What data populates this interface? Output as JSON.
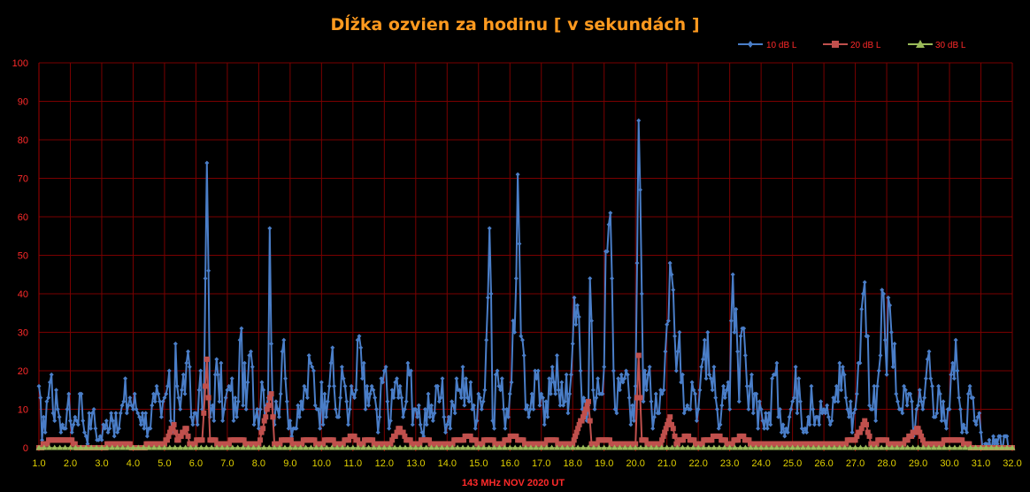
{
  "chart_data": {
    "type": "line",
    "title": "Dĺžka ozvien za hodinu [ v sekundách ]",
    "xlabel": "143 MHz  NOV  2020  UT",
    "ylabel": "",
    "xlim": [
      1.0,
      32.0
    ],
    "ylim": [
      0,
      100
    ],
    "x_ticks": [
      "1.0",
      "2.0",
      "3.0",
      "4.0",
      "5.0",
      "6.0",
      "7.0",
      "8.0",
      "9.0",
      "10.0",
      "11.0",
      "12.0",
      "13.0",
      "14.0",
      "15.0",
      "16.0",
      "17.0",
      "18.0",
      "19.0",
      "20.0",
      "21.0",
      "22.0",
      "23.0",
      "24.0",
      "25.0",
      "26.0",
      "27.0",
      "28.0",
      "29.0",
      "30.0",
      "31.0",
      "32.0"
    ],
    "y_ticks": [
      "0",
      "10",
      "20",
      "30",
      "40",
      "50",
      "60",
      "70",
      "80",
      "90",
      "100"
    ],
    "grid": true,
    "legend_position": "top-right",
    "series": [
      {
        "name": "10 dB L",
        "color": "#4a7ec8",
        "marker": "diamond",
        "keypoints": [
          [
            1.0,
            16
          ],
          [
            1.1,
            2
          ],
          [
            1.25,
            12
          ],
          [
            1.35,
            17
          ],
          [
            1.45,
            9
          ],
          [
            1.55,
            15
          ],
          [
            1.7,
            4
          ],
          [
            1.9,
            10
          ],
          [
            2.1,
            6
          ],
          [
            2.3,
            14
          ],
          [
            2.5,
            3
          ],
          [
            2.7,
            9
          ],
          [
            2.9,
            2
          ],
          [
            3.1,
            5
          ],
          [
            3.3,
            9
          ],
          [
            3.5,
            4
          ],
          [
            3.7,
            12
          ],
          [
            3.9,
            13
          ],
          [
            4.1,
            10
          ],
          [
            4.3,
            9
          ],
          [
            4.5,
            5
          ],
          [
            4.7,
            12
          ],
          [
            4.9,
            8
          ],
          [
            5.1,
            16
          ],
          [
            5.3,
            4
          ],
          [
            5.35,
            27
          ],
          [
            5.5,
            10
          ],
          [
            5.7,
            22
          ],
          [
            5.9,
            6
          ],
          [
            6.1,
            15
          ],
          [
            6.25,
            9
          ],
          [
            6.3,
            44
          ],
          [
            6.35,
            74
          ],
          [
            6.45,
            8
          ],
          [
            6.7,
            19
          ],
          [
            6.9,
            10
          ],
          [
            7.1,
            15
          ],
          [
            7.3,
            8
          ],
          [
            7.4,
            28
          ],
          [
            7.6,
            10
          ],
          [
            7.7,
            24
          ],
          [
            7.9,
            8
          ],
          [
            8.1,
            17
          ],
          [
            8.3,
            13
          ],
          [
            8.35,
            57
          ],
          [
            8.45,
            8
          ],
          [
            8.6,
            10
          ],
          [
            8.75,
            25
          ],
          [
            8.9,
            12
          ],
          [
            9.1,
            5
          ],
          [
            9.3,
            8
          ],
          [
            9.5,
            15
          ],
          [
            9.7,
            21
          ],
          [
            9.9,
            10
          ],
          [
            10.1,
            14
          ],
          [
            10.3,
            22
          ],
          [
            10.5,
            8
          ],
          [
            10.7,
            18
          ],
          [
            10.9,
            10
          ],
          [
            11.1,
            15
          ],
          [
            11.2,
            29
          ],
          [
            11.4,
            10
          ],
          [
            11.6,
            16
          ],
          [
            11.8,
            4
          ],
          [
            12.0,
            20
          ],
          [
            12.2,
            7
          ],
          [
            12.4,
            18
          ],
          [
            12.6,
            8
          ],
          [
            12.8,
            19
          ],
          [
            13.0,
            10
          ],
          [
            13.2,
            4
          ],
          [
            13.4,
            14
          ],
          [
            13.6,
            9
          ],
          [
            13.8,
            13
          ],
          [
            14.0,
            6
          ],
          [
            14.2,
            11
          ],
          [
            14.4,
            15
          ],
          [
            14.6,
            18
          ],
          [
            14.8,
            10
          ],
          [
            15.0,
            14
          ],
          [
            15.2,
            15
          ],
          [
            15.35,
            57
          ],
          [
            15.45,
            7
          ],
          [
            15.6,
            20
          ],
          [
            15.8,
            10
          ],
          [
            16.0,
            14
          ],
          [
            16.15,
            30
          ],
          [
            16.25,
            71
          ],
          [
            16.35,
            29
          ],
          [
            16.5,
            10
          ],
          [
            16.7,
            14
          ],
          [
            16.9,
            20
          ],
          [
            17.1,
            6
          ],
          [
            17.3,
            14
          ],
          [
            17.5,
            24
          ],
          [
            17.7,
            11
          ],
          [
            17.9,
            14
          ],
          [
            18.05,
            39
          ],
          [
            18.15,
            37
          ],
          [
            18.3,
            10
          ],
          [
            18.5,
            11
          ],
          [
            18.55,
            44
          ],
          [
            18.7,
            10
          ],
          [
            18.9,
            14
          ],
          [
            19.0,
            21
          ],
          [
            19.05,
            51
          ],
          [
            19.2,
            61
          ],
          [
            19.35,
            10
          ],
          [
            19.5,
            15
          ],
          [
            19.7,
            20
          ],
          [
            19.9,
            11
          ],
          [
            20.0,
            16
          ],
          [
            20.1,
            85
          ],
          [
            20.25,
            12
          ],
          [
            20.4,
            19
          ],
          [
            20.6,
            8
          ],
          [
            20.8,
            15
          ],
          [
            21.0,
            32
          ],
          [
            21.15,
            45
          ],
          [
            21.3,
            20
          ],
          [
            21.4,
            30
          ],
          [
            21.6,
            10
          ],
          [
            21.8,
            17
          ],
          [
            22.0,
            10
          ],
          [
            22.2,
            28
          ],
          [
            22.4,
            18
          ],
          [
            22.6,
            10
          ],
          [
            22.8,
            16
          ],
          [
            23.0,
            10
          ],
          [
            23.1,
            45
          ],
          [
            23.3,
            12
          ],
          [
            23.4,
            31
          ],
          [
            23.6,
            10
          ],
          [
            23.8,
            14
          ],
          [
            24.0,
            10
          ],
          [
            24.2,
            5
          ],
          [
            24.4,
            19
          ],
          [
            24.6,
            10
          ],
          [
            24.8,
            5
          ],
          [
            25.0,
            12
          ],
          [
            25.2,
            18
          ],
          [
            25.4,
            5
          ],
          [
            25.6,
            16
          ],
          [
            25.8,
            8
          ],
          [
            26.0,
            10
          ],
          [
            26.2,
            6
          ],
          [
            26.4,
            16
          ],
          [
            26.6,
            21
          ],
          [
            26.8,
            8
          ],
          [
            27.0,
            10
          ],
          [
            27.1,
            22
          ],
          [
            27.3,
            43
          ],
          [
            27.5,
            10
          ],
          [
            27.7,
            16
          ],
          [
            27.9,
            40
          ],
          [
            28.0,
            19
          ],
          [
            28.05,
            39
          ],
          [
            28.15,
            30
          ],
          [
            28.3,
            14
          ],
          [
            28.5,
            9
          ],
          [
            28.7,
            14
          ],
          [
            28.9,
            5
          ],
          [
            29.1,
            12
          ],
          [
            29.3,
            23
          ],
          [
            29.5,
            8
          ],
          [
            29.7,
            14
          ],
          [
            29.9,
            5
          ],
          [
            30.1,
            22
          ],
          [
            30.2,
            28
          ],
          [
            30.35,
            10
          ],
          [
            30.5,
            5
          ],
          [
            30.7,
            13
          ],
          [
            30.9,
            8
          ],
          [
            31.0,
            4
          ],
          [
            31.05,
            0
          ],
          [
            32.0,
            0
          ]
        ]
      },
      {
        "name": "20 dB L",
        "color": "#c0504d",
        "marker": "square",
        "keypoints": [
          [
            1.0,
            0
          ],
          [
            1.4,
            2
          ],
          [
            1.8,
            2
          ],
          [
            2.0,
            2
          ],
          [
            2.2,
            0
          ],
          [
            3.0,
            0
          ],
          [
            3.3,
            1
          ],
          [
            3.6,
            1
          ],
          [
            3.8,
            1
          ],
          [
            4.0,
            0
          ],
          [
            4.8,
            1
          ],
          [
            5.0,
            1
          ],
          [
            5.3,
            6
          ],
          [
            5.4,
            2
          ],
          [
            5.7,
            5
          ],
          [
            5.8,
            1
          ],
          [
            6.2,
            2
          ],
          [
            6.35,
            23
          ],
          [
            6.45,
            2
          ],
          [
            6.8,
            1
          ],
          [
            7.4,
            2
          ],
          [
            7.7,
            1
          ],
          [
            8.0,
            1
          ],
          [
            8.4,
            14
          ],
          [
            8.5,
            1
          ],
          [
            8.9,
            2
          ],
          [
            9.2,
            1
          ],
          [
            9.6,
            2
          ],
          [
            10.0,
            1
          ],
          [
            10.2,
            2
          ],
          [
            10.6,
            1
          ],
          [
            11.0,
            3
          ],
          [
            11.2,
            1
          ],
          [
            11.5,
            2
          ],
          [
            11.8,
            1
          ],
          [
            12.2,
            1
          ],
          [
            12.4,
            4
          ],
          [
            12.5,
            5
          ],
          [
            12.7,
            2
          ],
          [
            13.0,
            1
          ],
          [
            13.3,
            2
          ],
          [
            13.6,
            1
          ],
          [
            14.0,
            1
          ],
          [
            14.4,
            2
          ],
          [
            14.7,
            3
          ],
          [
            15.0,
            1
          ],
          [
            15.3,
            2
          ],
          [
            15.7,
            1
          ],
          [
            16.1,
            3
          ],
          [
            16.3,
            2
          ],
          [
            16.6,
            1
          ],
          [
            17.0,
            1
          ],
          [
            17.3,
            2
          ],
          [
            17.7,
            1
          ],
          [
            18.0,
            1
          ],
          [
            18.5,
            12
          ],
          [
            18.6,
            1
          ],
          [
            19.0,
            2
          ],
          [
            19.4,
            1
          ],
          [
            20.0,
            1
          ],
          [
            20.1,
            24
          ],
          [
            20.2,
            2
          ],
          [
            20.5,
            1
          ],
          [
            20.8,
            1
          ],
          [
            21.1,
            8
          ],
          [
            21.3,
            1
          ],
          [
            21.6,
            3
          ],
          [
            22.0,
            1
          ],
          [
            22.3,
            2
          ],
          [
            22.6,
            3
          ],
          [
            23.0,
            1
          ],
          [
            23.4,
            3
          ],
          [
            23.7,
            1
          ],
          [
            24.0,
            1
          ],
          [
            24.5,
            1
          ],
          [
            25.0,
            1
          ],
          [
            25.5,
            1
          ],
          [
            26.0,
            1
          ],
          [
            26.5,
            1
          ],
          [
            27.0,
            2
          ],
          [
            27.2,
            5
          ],
          [
            27.3,
            7
          ],
          [
            27.5,
            1
          ],
          [
            27.9,
            2
          ],
          [
            28.1,
            1
          ],
          [
            28.5,
            1
          ],
          [
            29.0,
            5
          ],
          [
            29.2,
            1
          ],
          [
            29.6,
            1
          ],
          [
            30.0,
            2
          ],
          [
            30.3,
            2
          ],
          [
            30.5,
            1
          ],
          [
            30.8,
            0
          ],
          [
            32.0,
            0
          ]
        ]
      },
      {
        "name": "30 dB L",
        "color": "#9bbb59",
        "marker": "triangle",
        "keypoints": [
          [
            1.0,
            0
          ],
          [
            32.0,
            0
          ]
        ]
      }
    ]
  }
}
